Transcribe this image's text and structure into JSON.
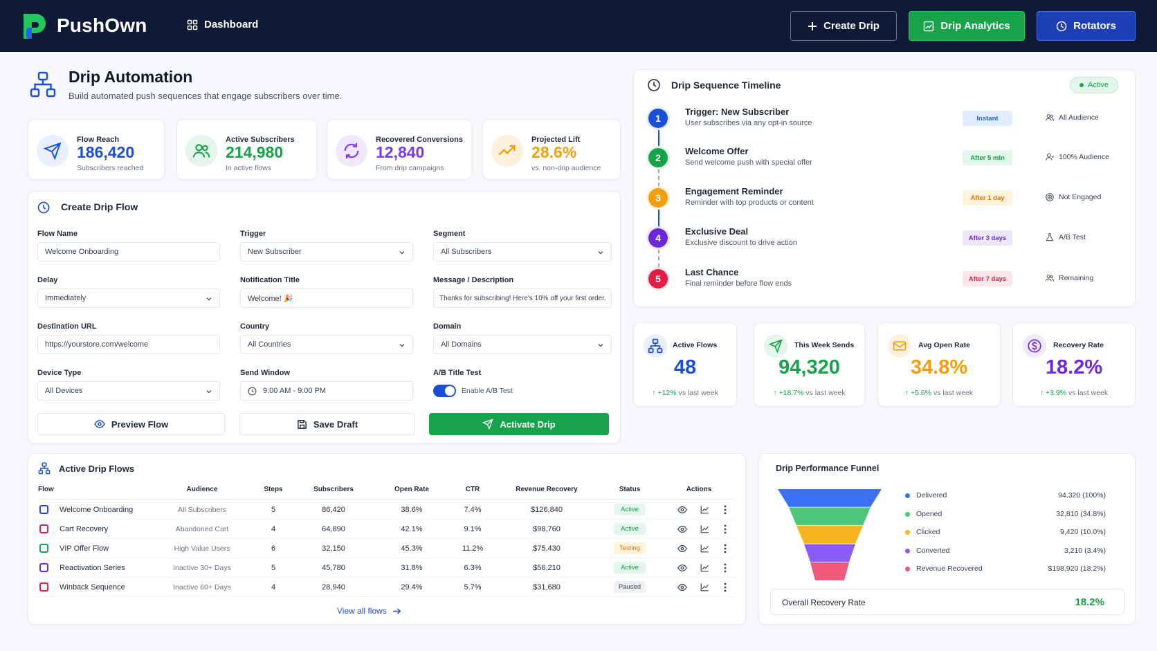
{
  "header": {
    "brand": "PushOwn",
    "nav_dashboard": "Dashboard",
    "btn_create": "Create Drip",
    "btn_analytics": "Drip Analytics",
    "btn_rotators": "Rotators"
  },
  "page": {
    "title": "Drip Automation",
    "subtitle": "Build automated push sequences that engage subscribers over time."
  },
  "stats": [
    {
      "label": "Flow Reach",
      "value": "186,420",
      "sub": "Subscribers reached",
      "color": "#1d4ed8"
    },
    {
      "label": "Active Subscribers",
      "value": "214,980",
      "sub": "In active flows",
      "color": "#16a34a"
    },
    {
      "label": "Recovered Conversions",
      "value": "12,840",
      "sub": "From drip campaigns",
      "color": "#7c3aed"
    },
    {
      "label": "Projected Lift",
      "value": "28.6%",
      "sub": "vs. non-drip audience",
      "color": "#f59e0b"
    }
  ],
  "form": {
    "title": "Create Drip Flow",
    "flow_name_label": "Flow Name",
    "flow_name_value": "Welcome Onboarding",
    "trigger_label": "Trigger",
    "trigger_value": "New Subscriber",
    "segment_label": "Segment",
    "segment_value": "All Subscribers",
    "delay_label": "Delay",
    "delay_value": "Immediately",
    "notif_title_label": "Notification Title",
    "notif_title_value": "Welcome! 🎉",
    "message_label": "Message / Description",
    "message_value": "Thanks for subscribing! Here's 10% off your first order.",
    "dest_url_label": "Destination URL",
    "dest_url_value": "https://yourstore.com/welcome",
    "country_label": "Country",
    "country_value": "All Countries",
    "domain_label": "Domain",
    "domain_value": "All Domains",
    "device_label": "Device Type",
    "device_value": "All Devices",
    "send_window_label": "Send Window",
    "send_window_value": "9:00 AM - 9:00 PM",
    "ab_label": "A/B Title Test",
    "ab_toggle_label": "Enable A/B Test",
    "ab_enabled": true,
    "btn_preview": "Preview Flow",
    "btn_save": "Save Draft",
    "btn_activate": "Activate Drip"
  },
  "timeline": {
    "title": "Drip Sequence Timeline",
    "status": "Active",
    "steps": [
      {
        "num": "1",
        "title": "Trigger: New Subscriber",
        "desc": "User subscribes via any opt-in source",
        "badge": "Instant",
        "audience": "All Audience",
        "color": "#1d4ed8",
        "badge_bg": "#e0ecff",
        "badge_fg": "#2563eb",
        "icon": "users-icon"
      },
      {
        "num": "2",
        "title": "Welcome Offer",
        "desc": "Send welcome push with special offer",
        "badge": "After 5 min",
        "audience": "100% Audience",
        "color": "#16a34a",
        "badge_bg": "#e3f6ea",
        "badge_fg": "#16a34a",
        "icon": "user-icon"
      },
      {
        "num": "3",
        "title": "Engagement Reminder",
        "desc": "Reminder with top products or content",
        "badge": "After 1 day",
        "audience": "Not Engaged",
        "color": "#f59e0b",
        "badge_bg": "#fff3dc",
        "badge_fg": "#d97706",
        "icon": "target-icon"
      },
      {
        "num": "4",
        "title": "Exclusive Deal",
        "desc": "Exclusive discount to drive action",
        "badge": "After 3 days",
        "audience": "A/B Test",
        "color": "#6d28d9",
        "badge_bg": "#ede7fb",
        "badge_fg": "#6d28d9",
        "icon": "flask-icon"
      },
      {
        "num": "5",
        "title": "Last Chance",
        "desc": "Final reminder before flow ends",
        "badge": "After 7 days",
        "audience": "Remaining",
        "color": "#e11d48",
        "badge_bg": "#fde6e9",
        "badge_fg": "#e11d48",
        "icon": "users-icon"
      }
    ]
  },
  "metrics": [
    {
      "label": "Active Flows",
      "value": "48",
      "change": "+12%",
      "suffix": "vs last week",
      "color": "#1d4ed8"
    },
    {
      "label": "This Week Sends",
      "value": "94,320",
      "change": "+18.7%",
      "suffix": "vs last week",
      "color": "#16a34a"
    },
    {
      "label": "Avg Open Rate",
      "value": "34.8%",
      "change": "+5.6%",
      "suffix": "vs last week",
      "color": "#f59e0b"
    },
    {
      "label": "Recovery Rate",
      "value": "18.2%",
      "change": "+3.9%",
      "suffix": "vs last week",
      "color": "#6d28d9"
    }
  ],
  "flows_table": {
    "title": "Active Drip Flows",
    "columns": [
      "Flow",
      "Audience",
      "Steps",
      "Subscribers",
      "Open Rate",
      "CTR",
      "Revenue Recovery",
      "Status",
      "Actions"
    ],
    "rows": [
      {
        "flow": "Welcome Onboarding",
        "audience": "All Subscribers",
        "steps": "5",
        "subscribers": "86,420",
        "open_rate": "38.6%",
        "ctr": "7.4%",
        "revenue": "$126,840",
        "status": "Active",
        "icon_color": "#1d4ed8"
      },
      {
        "flow": "Cart Recovery",
        "audience": "Abandoned Cart",
        "steps": "4",
        "subscribers": "64,890",
        "open_rate": "42.1%",
        "ctr": "9.1%",
        "revenue": "$98,760",
        "status": "Active",
        "icon_color": "#e11d48"
      },
      {
        "flow": "VIP Offer Flow",
        "audience": "High Value Users",
        "steps": "6",
        "subscribers": "32,150",
        "open_rate": "45.3%",
        "ctr": "11.2%",
        "revenue": "$75,430",
        "status": "Testing",
        "icon_color": "#16a34a"
      },
      {
        "flow": "Reactivation Series",
        "audience": "Inactive 30+ Days",
        "steps": "5",
        "subscribers": "45,780",
        "open_rate": "31.8%",
        "ctr": "6.3%",
        "revenue": "$56,210",
        "status": "Active",
        "icon_color": "#6d28d9"
      },
      {
        "flow": "Winback Sequence",
        "audience": "Inactive 60+ Days",
        "steps": "4",
        "subscribers": "28,940",
        "open_rate": "29.4%",
        "ctr": "5.7%",
        "revenue": "$31,680",
        "status": "Paused",
        "icon_color": "#e11d48"
      }
    ],
    "view_all": "View all flows"
  },
  "funnel": {
    "title": "Drip Performance Funnel",
    "items": [
      {
        "label": "Delivered",
        "value": "94,320 (100%)",
        "color": "#3b6ff5"
      },
      {
        "label": "Opened",
        "value": "32,810 (34.8%)",
        "color": "#4cc77a"
      },
      {
        "label": "Clicked",
        "value": "9,420 (10.0%)",
        "color": "#f6b423"
      },
      {
        "label": "Converted",
        "value": "3,210 (3.4%)",
        "color": "#8b5cf6"
      },
      {
        "label": "Revenue Recovered",
        "value": "$198,920 (18.2%)",
        "color": "#ef5a7a"
      }
    ],
    "overall_label": "Overall Recovery Rate",
    "overall_value": "18.2%"
  }
}
